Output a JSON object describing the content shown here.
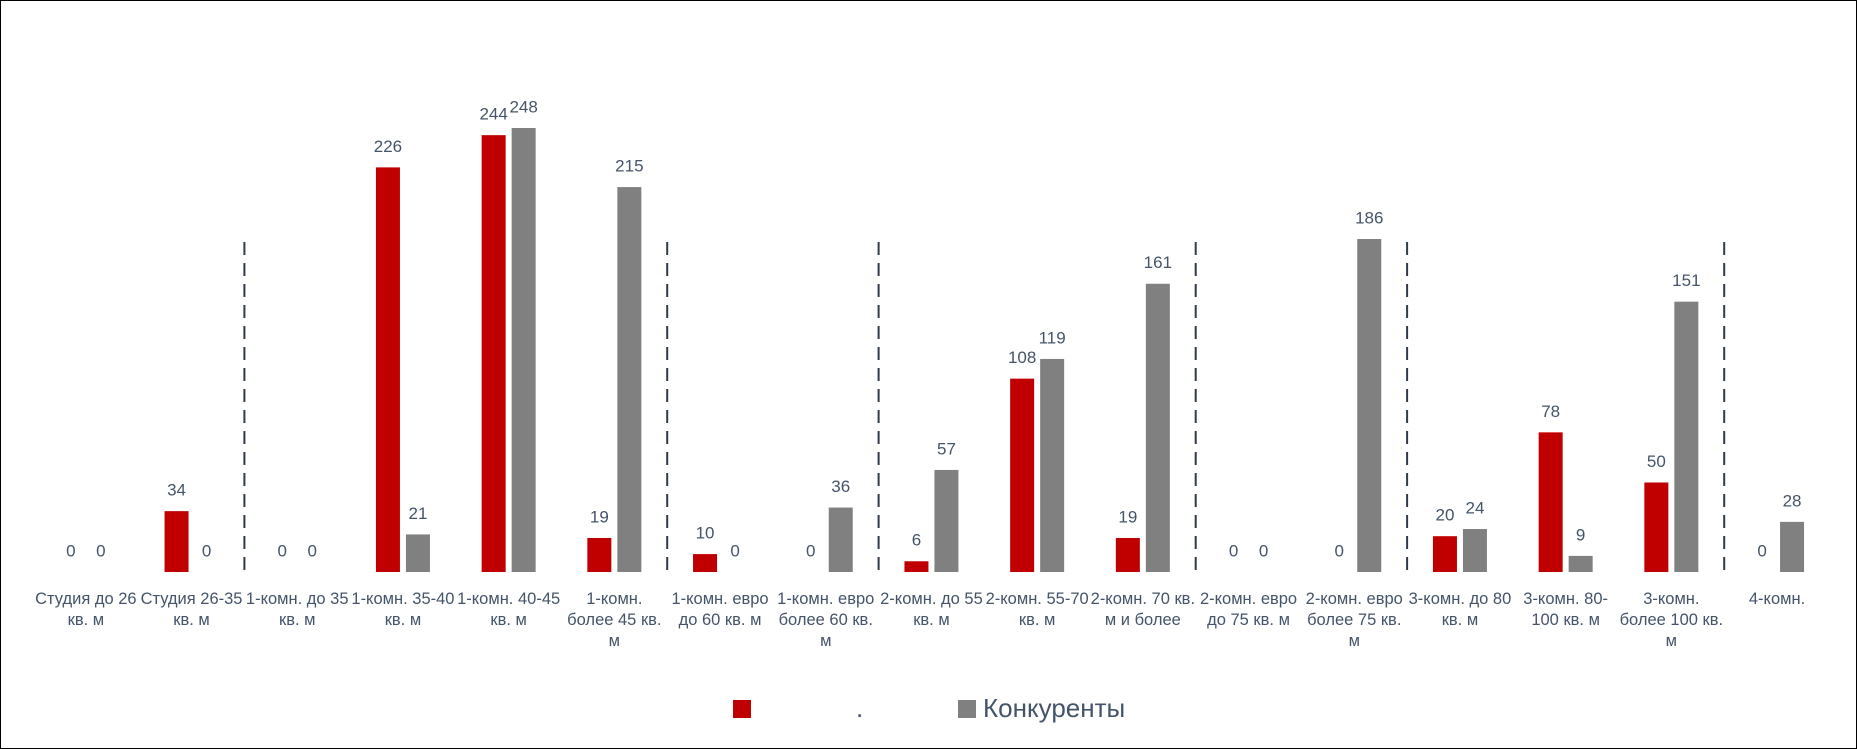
{
  "chart_data": {
    "type": "bar",
    "categories": [
      "Студия до 26 кв. м",
      "Студия 26-35 кв. м",
      "1-комн. до 35 кв. м",
      "1-комн. 35-40 кв. м",
      "1-комн. 40-45 кв. м",
      "1-комн. более 45 кв. м",
      "1-комн. евро до 60 кв. м",
      "1-комн. евро более 60 кв. м",
      "2-комн. до 55 кв. м",
      "2-комн. 55-70 кв. м",
      "2-комн. 70 кв. м и более",
      "2-комн. евро до 75 кв. м",
      "2-комн. евро более 75 кв. м",
      "3-комн. до 80 кв. м",
      "3-комн. 80-100 кв. м",
      "3-комн. более 100 кв. м",
      "4-комн."
    ],
    "series": [
      {
        "name": ".",
        "color": "#c00000",
        "values": [
          0,
          34,
          0,
          226,
          244,
          19,
          10,
          0,
          6,
          108,
          19,
          0,
          0,
          20,
          78,
          50,
          0
        ]
      },
      {
        "name": "Конкуренты",
        "color": "#808080",
        "values": [
          0,
          0,
          0,
          21,
          248,
          215,
          0,
          36,
          57,
          119,
          161,
          0,
          186,
          24,
          9,
          151,
          28
        ]
      }
    ]
  }
}
